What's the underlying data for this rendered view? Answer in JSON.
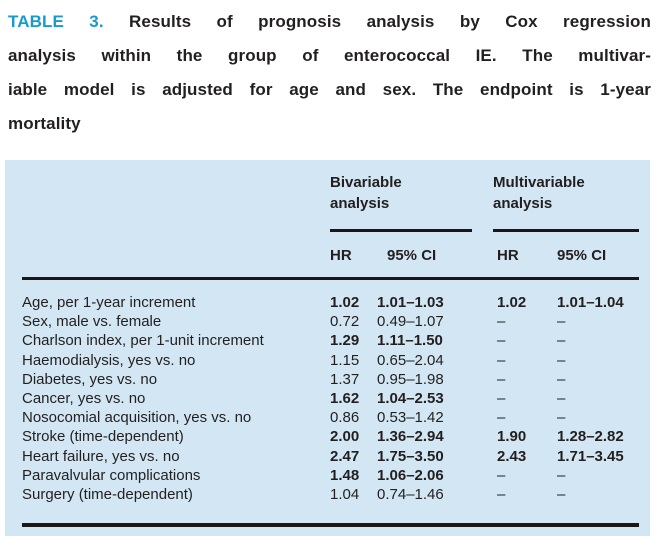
{
  "caption": {
    "label": "TABLE 3.",
    "lines": [
      "Results of prognosis analysis by Cox regression",
      "analysis within the group of enterococcal IE. The multivar-",
      "iable model is adjusted for age and sex. The endpoint is 1-year",
      "mortality"
    ]
  },
  "colors": {
    "accent_blue": "#1899cf",
    "panel_background": "#d2e7f3",
    "text": "#231f20",
    "rule": "#1b1718"
  },
  "table": {
    "groups": [
      {
        "label": "Bivariable analysis"
      },
      {
        "label": "Multivariable analysis"
      }
    ],
    "columns": [
      "HR",
      "95% CI",
      "HR",
      "95% CI"
    ],
    "missing_marker": "–",
    "rows": [
      {
        "label": "Age, per 1-year increment",
        "bi_hr": "1.02",
        "bi_ci": "1.01–1.03",
        "mu_hr": "1.02",
        "mu_ci": "1.01–1.04",
        "significant": true
      },
      {
        "label": "Sex, male vs. female",
        "bi_hr": "0.72",
        "bi_ci": "0.49–1.07",
        "mu_hr": "–",
        "mu_ci": "–",
        "significant": false
      },
      {
        "label": "Charlson index, per 1-unit increment",
        "bi_hr": "1.29",
        "bi_ci": "1.11–1.50",
        "mu_hr": "–",
        "mu_ci": "–",
        "significant": true
      },
      {
        "label": "Haemodialysis, yes vs. no",
        "bi_hr": "1.15",
        "bi_ci": "0.65–2.04",
        "mu_hr": "–",
        "mu_ci": "–",
        "significant": false
      },
      {
        "label": "Diabetes, yes vs. no",
        "bi_hr": "1.37",
        "bi_ci": "0.95–1.98",
        "mu_hr": "–",
        "mu_ci": "–",
        "significant": false
      },
      {
        "label": "Cancer, yes vs. no",
        "bi_hr": "1.62",
        "bi_ci": "1.04–2.53",
        "mu_hr": "–",
        "mu_ci": "–",
        "significant": true
      },
      {
        "label": "Nosocomial acquisition, yes vs. no",
        "bi_hr": "0.86",
        "bi_ci": "0.53–1.42",
        "mu_hr": "–",
        "mu_ci": "–",
        "significant": false
      },
      {
        "label": "Stroke (time-dependent)",
        "bi_hr": "2.00",
        "bi_ci": "1.36–2.94",
        "mu_hr": "1.90",
        "mu_ci": "1.28–2.82",
        "significant": true
      },
      {
        "label": "Heart failure, yes vs. no",
        "bi_hr": "2.47",
        "bi_ci": "1.75–3.50",
        "mu_hr": "2.43",
        "mu_ci": "1.71–3.45",
        "significant": true
      },
      {
        "label": "Paravalvular complications",
        "bi_hr": "1.48",
        "bi_ci": "1.06–2.06",
        "mu_hr": "–",
        "mu_ci": "–",
        "significant": true
      },
      {
        "label": "Surgery (time-dependent)",
        "bi_hr": "1.04",
        "bi_ci": "0.74–1.46",
        "mu_hr": "–",
        "mu_ci": "–",
        "significant": false
      }
    ]
  }
}
